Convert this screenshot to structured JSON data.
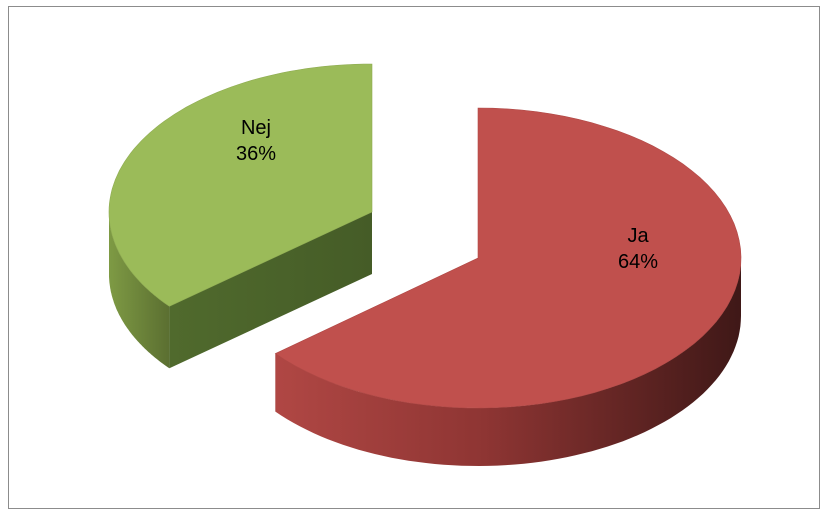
{
  "chart_data": {
    "type": "pie",
    "style": "3d-exploded",
    "slices": [
      {
        "label": "Ja",
        "value": 64,
        "value_label": "64%",
        "color": "#c0504d"
      },
      {
        "label": "Nej",
        "value": 36,
        "value_label": "36%",
        "color": "#9bbb59"
      }
    ],
    "legend": "none"
  }
}
